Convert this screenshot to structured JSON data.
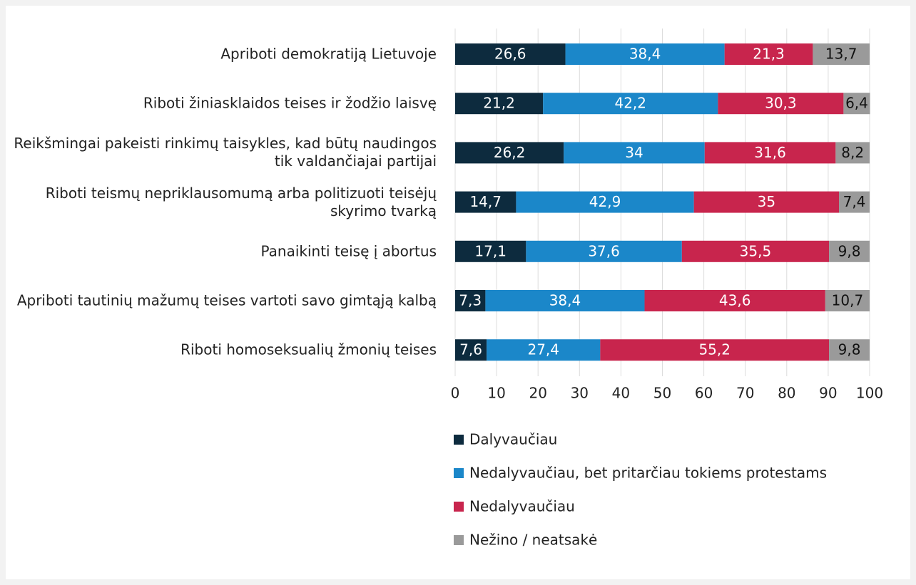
{
  "chart_data": {
    "type": "stacked_barh",
    "categories": [
      "Apriboti demokratiją Lietuvoje",
      "Riboti žiniasklaidos teises ir žodžio laisvę",
      "Reikšmingai pakeisti rinkimų taisykles, kad būtų naudingos tik valdančiajai partijai",
      "Riboti teismų nepriklausomumą arba politizuoti teisėjų skyrimo tvarką",
      "Panaikinti teisę į abortus",
      "Apriboti tautinių mažumų teises vartoti savo gimtąją kalbą",
      "Riboti homoseksualių žmonių teises"
    ],
    "series": [
      {
        "name": "Dalyvaučiau",
        "color": "#0d2b3e",
        "values": [
          26.6,
          21.2,
          26.2,
          14.7,
          17.1,
          7.3,
          7.6
        ],
        "value_labels": [
          "26,6",
          "21,2",
          "26,2",
          "14,7",
          "17,1",
          "7,3",
          "7,6"
        ]
      },
      {
        "name": "Nedalyvaučiau, bet pritarčiau tokiems protestams",
        "color": "#1b87c9",
        "values": [
          38.4,
          42.2,
          34,
          42.9,
          37.6,
          38.4,
          27.4
        ],
        "value_labels": [
          "38,4",
          "42,2",
          "34",
          "42,9",
          "37,6",
          "38,4",
          "27,4"
        ]
      },
      {
        "name": "Nedalyvaučiau",
        "color": "#c8254d",
        "values": [
          21.3,
          30.3,
          31.6,
          35,
          35.5,
          43.6,
          55.2
        ],
        "value_labels": [
          "21,3",
          "30,3",
          "31,6",
          "35",
          "35,5",
          "43,6",
          "55,2"
        ]
      },
      {
        "name": "Nežino / neatsakė",
        "color": "#9a9a9a",
        "values": [
          13.7,
          6.4,
          8.2,
          7.4,
          9.8,
          10.7,
          9.8
        ],
        "value_labels": [
          "13,7",
          "6,4",
          "8,2",
          "7,4",
          "9,8",
          "10,7",
          "9,8"
        ]
      }
    ],
    "xlim": [
      0,
      100
    ],
    "xticks": [
      0,
      10,
      20,
      30,
      40,
      50,
      60,
      70,
      80,
      90,
      100
    ],
    "grid": true,
    "legend": "bottom"
  }
}
